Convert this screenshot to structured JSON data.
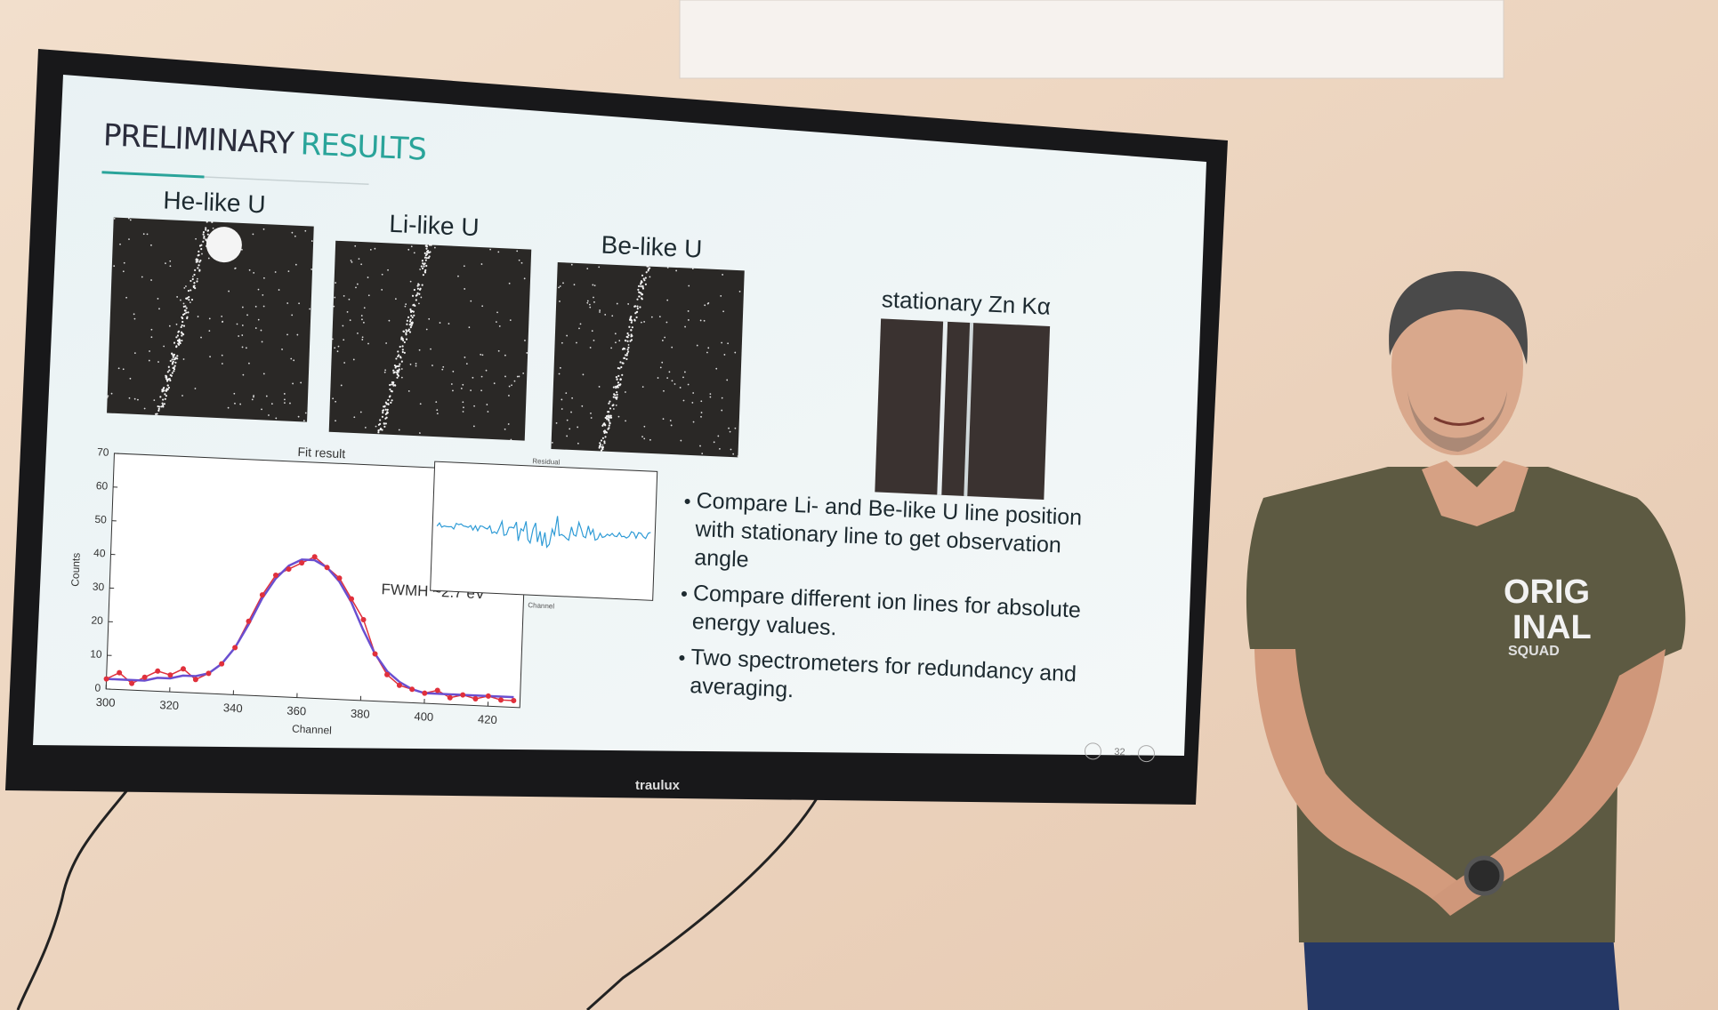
{
  "slide": {
    "title_1": "PRELIMINARY",
    "title_2": "RESULTS",
    "images": [
      {
        "label": "He-like U"
      },
      {
        "label": "Li-like U"
      },
      {
        "label": "Be-like U"
      },
      {
        "label": "stationary Zn Kα"
      }
    ],
    "plot": {
      "type": "line",
      "title": "Fit result",
      "x_label": "Channel",
      "y_label": "Counts",
      "xlim": [
        300,
        430
      ],
      "ylim": [
        0,
        70
      ],
      "xticks": [
        300,
        320,
        340,
        360,
        380,
        400,
        420
      ],
      "yticks": [
        0,
        10,
        20,
        30,
        40,
        50,
        60,
        70
      ],
      "color": "#e0303c",
      "fit_color": "#6a4fd0",
      "x": [
        300,
        304,
        308,
        312,
        316,
        320,
        324,
        328,
        332,
        336,
        340,
        344,
        348,
        352,
        356,
        360,
        364,
        368,
        372,
        376,
        380,
        384,
        388,
        392,
        396,
        400,
        404,
        408,
        412,
        416,
        420,
        424,
        428
      ],
      "values": [
        3,
        5,
        2,
        4,
        6,
        5,
        7,
        4,
        6,
        9,
        14,
        22,
        30,
        36,
        38,
        40,
        42,
        39,
        36,
        30,
        24,
        14,
        8,
        5,
        4,
        3,
        4,
        2,
        3,
        2,
        3,
        2,
        2
      ],
      "fit_values": [
        3,
        3,
        3,
        3,
        4,
        4,
        5,
        5,
        6,
        9,
        14,
        21,
        29,
        35,
        39,
        41,
        41,
        39,
        35,
        29,
        21,
        14,
        9,
        6,
        4,
        3,
        3,
        3,
        3,
        3,
        3,
        3,
        3
      ],
      "annotation": "FWMH ~2.7 eV",
      "inset_title": "Residual",
      "inset_x_label": "Channel"
    },
    "bullets": [
      [
        "Compare Li- and Be-like U line position",
        "with stationary line to get observation",
        "angle"
      ],
      [
        "Compare different ion lines for absolute",
        "energy values."
      ],
      [
        "Two spectrometers for redundancy and",
        "averaging."
      ]
    ],
    "page_number": "32"
  },
  "monitor": {
    "brand": "traulux"
  },
  "shirt": {
    "line_1": "ORIG",
    "line_2": "INAL",
    "line_3": "SQUAD"
  }
}
